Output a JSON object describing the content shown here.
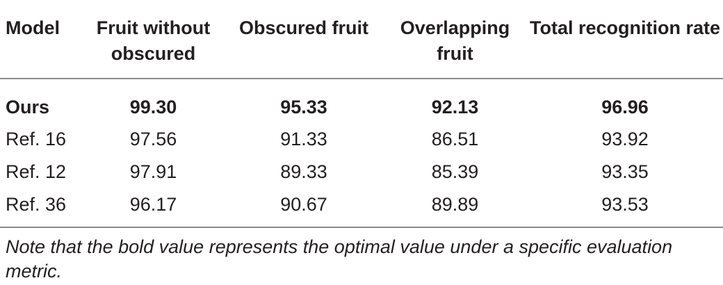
{
  "table": {
    "columns": [
      "Model",
      "Fruit without obscured",
      "Obscured fruit",
      "Overlapping fruit",
      "Total recognition rate"
    ],
    "rows": [
      {
        "model": "Ours",
        "without_obscured": "99.30",
        "obscured": "95.33",
        "overlapping": "92.13",
        "total": "96.96",
        "bold": true
      },
      {
        "model": "Ref. 16",
        "without_obscured": "97.56",
        "obscured": "91.33",
        "overlapping": "86.51",
        "total": "93.92",
        "bold": false
      },
      {
        "model": "Ref. 12",
        "without_obscured": "97.91",
        "obscured": "89.33",
        "overlapping": "85.39",
        "total": "93.35",
        "bold": false
      },
      {
        "model": "Ref. 36",
        "without_obscured": "96.17",
        "obscured": "90.67",
        "overlapping": "89.89",
        "total": "93.53",
        "bold": false
      }
    ]
  },
  "note": "Note that the bold value represents the optimal value under a specific evaluation metric.",
  "colors": {
    "text": "#231f20",
    "rule": "#8a8a8a"
  }
}
